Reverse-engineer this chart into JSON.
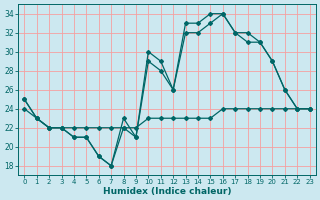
{
  "xlabel": "Humidex (Indice chaleur)",
  "bg_color": "#cce8f0",
  "grid_color": "#f5a0a0",
  "line_color": "#006666",
  "xlim": [
    -0.5,
    23.5
  ],
  "ylim": [
    17,
    35
  ],
  "xticks": [
    0,
    1,
    2,
    3,
    4,
    5,
    6,
    7,
    8,
    9,
    10,
    11,
    12,
    13,
    14,
    15,
    16,
    17,
    18,
    19,
    20,
    21,
    22,
    23
  ],
  "yticks": [
    18,
    20,
    22,
    24,
    26,
    28,
    30,
    32,
    34
  ],
  "line1_x": [
    0,
    1,
    2,
    3,
    4,
    5,
    6,
    7,
    8,
    9,
    10,
    11,
    12,
    13,
    14,
    15,
    16,
    17,
    18,
    19,
    20,
    21,
    22,
    23
  ],
  "line1_y": [
    25,
    23,
    22,
    22,
    21,
    21,
    19,
    18,
    23,
    21,
    30,
    29,
    26,
    33,
    33,
    34,
    34,
    32,
    32,
    31,
    29,
    26,
    24,
    24
  ],
  "line2_x": [
    0,
    1,
    2,
    3,
    4,
    5,
    6,
    7,
    8,
    9,
    10,
    11,
    12,
    13,
    14,
    15,
    16,
    17,
    18,
    19,
    20,
    21,
    22,
    23
  ],
  "line2_y": [
    25,
    23,
    22,
    22,
    21,
    21,
    19,
    18,
    22,
    21,
    29,
    28,
    26,
    32,
    32,
    33,
    34,
    32,
    31,
    31,
    29,
    26,
    24,
    24
  ],
  "line3_x": [
    0,
    1,
    2,
    3,
    4,
    5,
    6,
    7,
    8,
    9,
    10,
    11,
    12,
    13,
    14,
    15,
    16,
    17,
    18,
    19,
    20,
    21,
    22,
    23
  ],
  "line3_y": [
    24,
    23,
    22,
    22,
    22,
    22,
    22,
    22,
    22,
    22,
    23,
    23,
    23,
    23,
    23,
    23,
    24,
    24,
    24,
    24,
    24,
    24,
    24,
    24
  ]
}
